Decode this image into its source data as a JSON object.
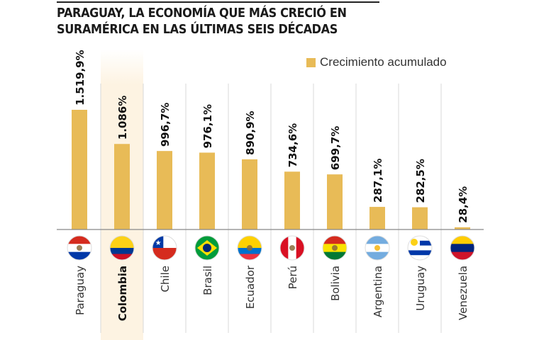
{
  "title": [
    "PARAGUAY, LA ECONOMÍA QUE MÁS CRECIÓ EN",
    "SURAMÉRICA EN LAS ÚLTIMAS SEIS DÉCADAS"
  ],
  "chart_data": {
    "type": "bar",
    "title": "PARAGUAY, LA ECONOMÍA QUE MÁS CRECIÓ EN SURAMÉRICA EN LAS ÚLTIMAS SEIS DÉCADAS",
    "categories": [
      "Paraguay",
      "Colombia",
      "Chile",
      "Brasil",
      "Ecuador",
      "Perú",
      "Bolivia",
      "Argentina",
      "Uruguay",
      "Venezuela"
    ],
    "series": [
      {
        "name": "Crecimiento acumulado",
        "values": [
          1519.9,
          1086,
          996.7,
          976.1,
          890.9,
          734.6,
          699.7,
          287.1,
          282.5,
          28.4
        ]
      }
    ],
    "value_labels": [
      "1.519,9%",
      "1.086%",
      "996,7%",
      "976,1%",
      "890,9%",
      "734,6%",
      "699,7%",
      "287,1%",
      "282,5%",
      "28,4%"
    ],
    "highlight": "Colombia",
    "legend": "top-right",
    "ylim": [
      0,
      1600
    ],
    "xlabel": "",
    "ylabel": "",
    "bar_color": "#e8bb57",
    "highlight_color": "#fdf3e2",
    "flags": [
      {
        "icon": "paraguay-flag-icon",
        "stripes": [
          "#d52b1e",
          "#ffffff",
          "#0038a8"
        ]
      },
      {
        "icon": "colombia-flag-icon",
        "stripes": [
          "#fcd116",
          "#fcd116",
          "#003893",
          "#ce1126"
        ]
      },
      {
        "icon": "chile-flag-icon",
        "stripes": [
          "#ffffff",
          "#d52b1e"
        ]
      },
      {
        "icon": "brasil-flag-icon",
        "stripes": [
          "#009c3b"
        ]
      },
      {
        "icon": "ecuador-flag-icon",
        "stripes": [
          "#ffd100",
          "#ffd100",
          "#0072ce",
          "#ef3340"
        ]
      },
      {
        "icon": "peru-flag-icon",
        "vstripes": [
          "#d91023",
          "#ffffff",
          "#d91023"
        ]
      },
      {
        "icon": "bolivia-flag-icon",
        "stripes": [
          "#d52b1e",
          "#f9e300",
          "#007934"
        ]
      },
      {
        "icon": "argentina-flag-icon",
        "stripes": [
          "#74acdf",
          "#ffffff",
          "#74acdf"
        ]
      },
      {
        "icon": "uruguay-flag-icon",
        "stripes": [
          "#ffffff",
          "#0038a8",
          "#ffffff",
          "#0038a8",
          "#ffffff"
        ]
      },
      {
        "icon": "venezuela-flag-icon",
        "stripes": [
          "#ffcc00",
          "#00247d",
          "#cf142b"
        ]
      }
    ]
  }
}
